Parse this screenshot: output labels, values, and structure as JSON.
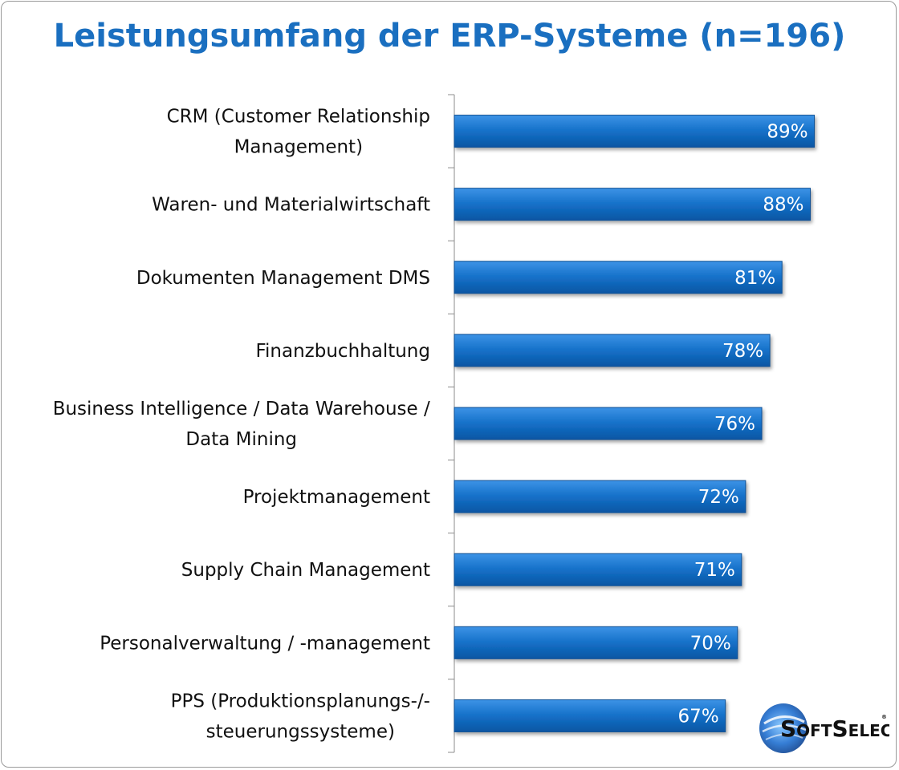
{
  "title": "Leistungsumfang der ERP-Systeme (n=196)",
  "logo": {
    "name": "SoftSelect",
    "first": "S",
    "part1": "OFT",
    "second": "S",
    "part2": "ELECT",
    "registered": "®"
  },
  "colors": {
    "title": "#1a6fc0",
    "bar": "#1470c8",
    "bar_light": "#3d93e6",
    "bar_dark": "#0b56a3"
  },
  "chart_data": {
    "type": "bar",
    "orientation": "horizontal",
    "title": "Leistungsumfang der ERP-Systeme (n=196)",
    "categories": [
      [
        "CRM (Customer Relationship",
        "Management)"
      ],
      [
        "Waren- und Materialwirtschaft"
      ],
      [
        "Dokumenten Management DMS"
      ],
      [
        "Finanzbuchhaltung"
      ],
      [
        "Business Intelligence / Data Warehouse /",
        "Data Mining"
      ],
      [
        "Projektmanagement"
      ],
      [
        "Supply Chain Management"
      ],
      [
        "Personalverwaltung / -management"
      ],
      [
        "PPS (Produktionsplanungs-/-",
        "steuerungssysteme)"
      ]
    ],
    "values": [
      89,
      88,
      81,
      78,
      76,
      72,
      71,
      70,
      67
    ],
    "value_labels": [
      "89%",
      "88%",
      "81%",
      "78%",
      "76%",
      "72%",
      "71%",
      "70%",
      "67%"
    ],
    "xlim": [
      0,
      100
    ],
    "grid": false,
    "legend": "none"
  }
}
